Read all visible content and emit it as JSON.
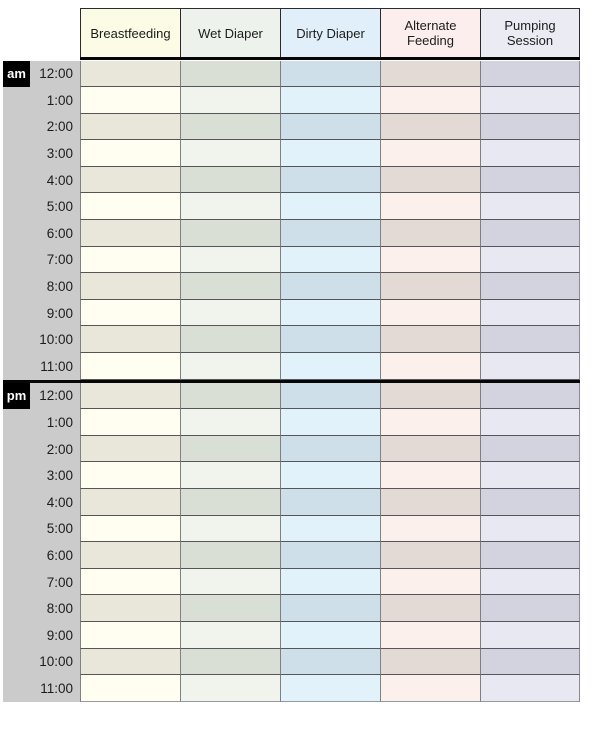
{
  "header": {
    "columns": [
      "Breastfeeding",
      "Wet Diaper",
      "Dirty Diaper",
      "Alternate Feeding",
      "Pumping Session"
    ]
  },
  "times": [
    "12:00",
    "1:00",
    "2:00",
    "3:00",
    "4:00",
    "5:00",
    "6:00",
    "7:00",
    "8:00",
    "9:00",
    "10:00",
    "11:00"
  ],
  "sections": [
    {
      "label": "am"
    },
    {
      "label": "pm"
    }
  ],
  "colors": {
    "columns": [
      {
        "header": "#fbfbe6",
        "light": "#fffef0",
        "dark": "#e8e7da"
      },
      {
        "header": "#edf2ec",
        "light": "#f0f4ed",
        "dark": "#d9dfd5"
      },
      {
        "header": "#e1effa",
        "light": "#e2f2fb",
        "dark": "#cfdfe9"
      },
      {
        "header": "#fbeeec",
        "light": "#fbf0ec",
        "dark": "#e3dad6"
      },
      {
        "header": "#ebebf4",
        "light": "#e8e8f3",
        "dark": "#d2d3de"
      }
    ],
    "time_column_bg": "#cbcbcb",
    "badge_bg": "#000000",
    "badge_text": "#ffffff",
    "header_border": "#2b2b2b",
    "row_border": "#55555a",
    "column_border": "#7d8184",
    "thick_divider": "#060606"
  }
}
